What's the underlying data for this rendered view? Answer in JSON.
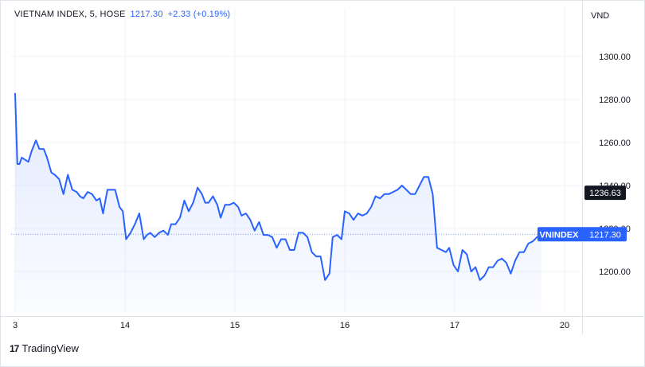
{
  "header": {
    "symbol": "VIETNAM INDEX, 5, HOSE",
    "last": "1217.30",
    "change": "+2.33 (+0.19%)"
  },
  "unit": "VND",
  "brand": {
    "logo": "17",
    "name": "TradingView"
  },
  "colors": {
    "line": "#2962ff",
    "grid": "#f0f3fa",
    "axis": "#e0e3eb",
    "label_bg": "#131722",
    "accent": "#2962ff"
  },
  "chart_data": {
    "type": "area",
    "x_ticks": [
      {
        "label": "3",
        "x": 0
      },
      {
        "label": "14",
        "x": 1
      },
      {
        "label": "15",
        "x": 2
      },
      {
        "label": "16",
        "x": 3
      },
      {
        "label": "17",
        "x": 4
      },
      {
        "label": "20",
        "x": 5
      }
    ],
    "y_ticks": [
      1200,
      1220,
      1240,
      1260,
      1280,
      1300
    ],
    "y_tick_labels": [
      "1200.00",
      "1220.00",
      "1240.00",
      "1260.00",
      "1280.00",
      "1300.00"
    ],
    "ylim": [
      1183,
      1306
    ],
    "xlim": [
      0,
      5.1
    ],
    "series": [
      {
        "points": [
          [
            0.0,
            1283
          ],
          [
            0.02,
            1250
          ],
          [
            0.04,
            1250
          ],
          [
            0.06,
            1253
          ],
          [
            0.09,
            1252
          ],
          [
            0.12,
            1251
          ],
          [
            0.15,
            1256
          ],
          [
            0.19,
            1261
          ],
          [
            0.22,
            1257
          ],
          [
            0.26,
            1257
          ],
          [
            0.29,
            1253
          ],
          [
            0.33,
            1246
          ],
          [
            0.36,
            1245
          ],
          [
            0.4,
            1243
          ],
          [
            0.44,
            1236
          ],
          [
            0.48,
            1245
          ],
          [
            0.52,
            1238
          ],
          [
            0.56,
            1237
          ],
          [
            0.59,
            1235
          ],
          [
            0.62,
            1234
          ],
          [
            0.66,
            1237
          ],
          [
            0.7,
            1236
          ],
          [
            0.74,
            1233
          ],
          [
            0.77,
            1234
          ],
          [
            0.8,
            1227
          ],
          [
            0.84,
            1238
          ],
          [
            0.88,
            1238
          ],
          [
            0.91,
            1238
          ],
          [
            0.95,
            1230
          ],
          [
            0.98,
            1228
          ],
          [
            1.01,
            1215
          ],
          [
            1.05,
            1218
          ],
          [
            1.09,
            1222
          ],
          [
            1.13,
            1227
          ],
          [
            1.17,
            1215
          ],
          [
            1.2,
            1217
          ],
          [
            1.23,
            1218
          ],
          [
            1.27,
            1216
          ],
          [
            1.31,
            1218
          ],
          [
            1.35,
            1219
          ],
          [
            1.39,
            1217
          ],
          [
            1.42,
            1222
          ],
          [
            1.46,
            1222
          ],
          [
            1.5,
            1225
          ],
          [
            1.54,
            1233
          ],
          [
            1.58,
            1228
          ],
          [
            1.62,
            1232
          ],
          [
            1.66,
            1239
          ],
          [
            1.7,
            1236
          ],
          [
            1.73,
            1232
          ],
          [
            1.76,
            1232
          ],
          [
            1.8,
            1235
          ],
          [
            1.84,
            1231
          ],
          [
            1.87,
            1225
          ],
          [
            1.91,
            1231
          ],
          [
            1.95,
            1231
          ],
          [
            1.99,
            1232
          ],
          [
            2.03,
            1230
          ],
          [
            2.06,
            1226
          ],
          [
            2.1,
            1227
          ],
          [
            2.14,
            1224
          ],
          [
            2.18,
            1219
          ],
          [
            2.22,
            1223
          ],
          [
            2.26,
            1217
          ],
          [
            2.3,
            1217
          ],
          [
            2.34,
            1216
          ],
          [
            2.38,
            1211
          ],
          [
            2.42,
            1215
          ],
          [
            2.46,
            1215
          ],
          [
            2.5,
            1210
          ],
          [
            2.54,
            1210
          ],
          [
            2.58,
            1218
          ],
          [
            2.62,
            1218
          ],
          [
            2.66,
            1216
          ],
          [
            2.7,
            1209
          ],
          [
            2.74,
            1207
          ],
          [
            2.78,
            1207
          ],
          [
            2.82,
            1196
          ],
          [
            2.86,
            1199
          ],
          [
            2.89,
            1216
          ],
          [
            2.93,
            1217
          ],
          [
            2.97,
            1215
          ],
          [
            3.0,
            1228
          ],
          [
            3.04,
            1227
          ],
          [
            3.08,
            1224
          ],
          [
            3.12,
            1227
          ],
          [
            3.16,
            1226
          ],
          [
            3.2,
            1227
          ],
          [
            3.24,
            1230
          ],
          [
            3.28,
            1235
          ],
          [
            3.32,
            1234
          ],
          [
            3.36,
            1236
          ],
          [
            3.4,
            1236
          ],
          [
            3.44,
            1237
          ],
          [
            3.48,
            1238
          ],
          [
            3.52,
            1240
          ],
          [
            3.56,
            1238
          ],
          [
            3.6,
            1236
          ],
          [
            3.64,
            1236
          ],
          [
            3.68,
            1240
          ],
          [
            3.72,
            1244
          ],
          [
            3.76,
            1244
          ],
          [
            3.8,
            1236
          ],
          [
            3.84,
            1211
          ],
          [
            3.88,
            1210
          ],
          [
            3.92,
            1209
          ],
          [
            3.95,
            1211
          ],
          [
            3.99,
            1203
          ],
          [
            4.03,
            1200
          ],
          [
            4.07,
            1210
          ],
          [
            4.11,
            1208
          ],
          [
            4.15,
            1200
          ],
          [
            4.19,
            1202
          ],
          [
            4.23,
            1196
          ],
          [
            4.27,
            1198
          ],
          [
            4.31,
            1202
          ],
          [
            4.35,
            1202
          ],
          [
            4.39,
            1205
          ],
          [
            4.43,
            1206
          ],
          [
            4.47,
            1204
          ],
          [
            4.51,
            1199
          ],
          [
            4.55,
            1205
          ],
          [
            4.59,
            1209
          ],
          [
            4.63,
            1209
          ],
          [
            4.67,
            1213
          ],
          [
            4.71,
            1214
          ],
          [
            4.75,
            1216
          ],
          [
            4.79,
            1217.3
          ]
        ]
      }
    ],
    "reference_line": {
      "label": "VNINDEX",
      "value": 1217.3,
      "text": "1217.30"
    },
    "secondary_marker": {
      "value": 1236.63,
      "text": "1236.63"
    },
    "grid": true,
    "legend": "none"
  }
}
